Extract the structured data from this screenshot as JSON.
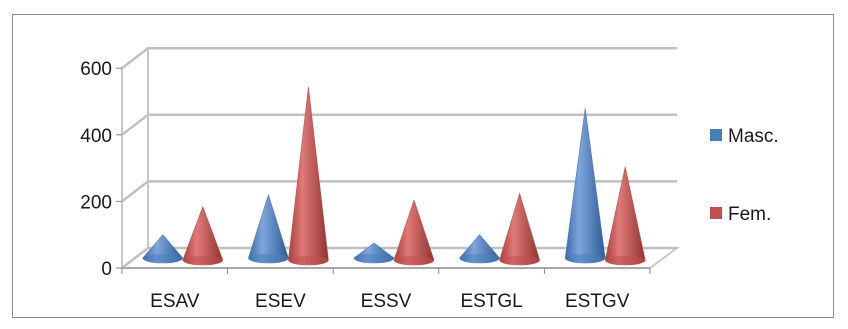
{
  "chart_data": {
    "type": "bar",
    "style": "3d-cone",
    "categories": [
      "ESAV",
      "ESEV",
      "ESSV",
      "ESTGL",
      "ESTGV"
    ],
    "series": [
      {
        "name": "Masc.",
        "color": "#4a7ebb",
        "values": [
          70,
          190,
          45,
          70,
          450
        ]
      },
      {
        "name": "Fem.",
        "color": "#c0504d",
        "values": [
          160,
          520,
          180,
          200,
          280
        ]
      }
    ],
    "yticks": [
      "0",
      "200",
      "400",
      "600"
    ],
    "ylim": [
      0,
      600
    ],
    "grid": true,
    "legend": "right"
  }
}
